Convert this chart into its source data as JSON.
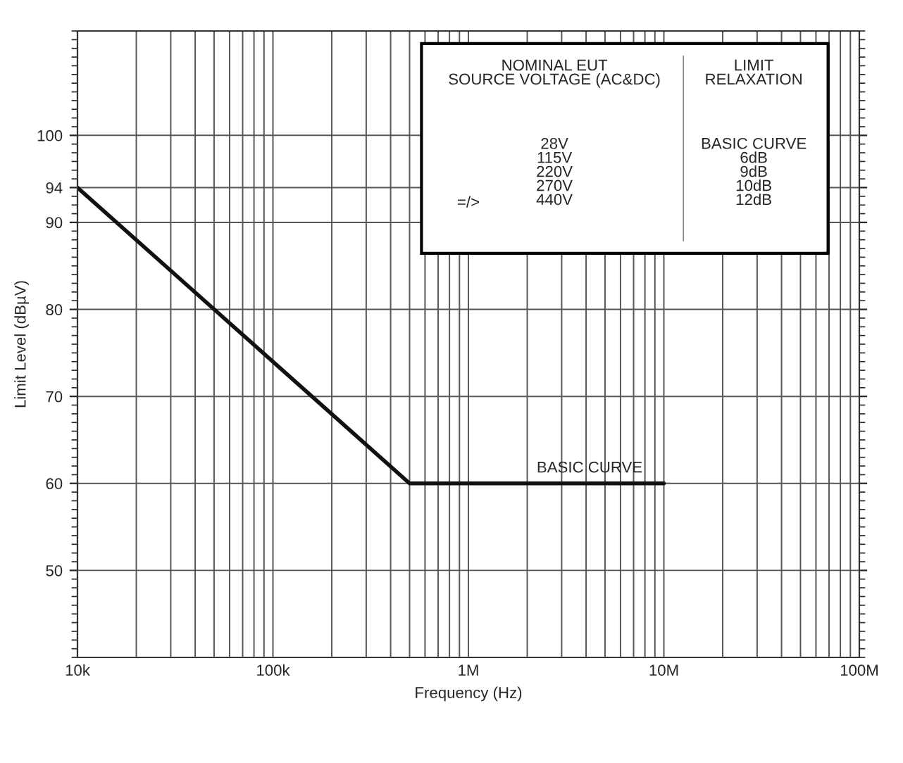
{
  "chart_data": {
    "type": "line",
    "xlabel": "Frequency (Hz)",
    "ylabel": "Limit Level (dBµV)",
    "log": "x",
    "xlim": [
      10000,
      100000000
    ],
    "ylim": [
      40,
      112
    ],
    "xticks": [
      {
        "value": 10000,
        "label": "10k"
      },
      {
        "value": 100000,
        "label": "100k"
      },
      {
        "value": 1000000,
        "label": "1M"
      },
      {
        "value": 10000000,
        "label": "10M"
      },
      {
        "value": 100000000,
        "label": "100M"
      }
    ],
    "yticks": [
      50,
      60,
      70,
      80,
      90,
      94,
      100
    ],
    "grid": true,
    "marker": "none",
    "line_style": "solid",
    "series": [
      {
        "color": "#111111",
        "x": [
          10000,
          500000,
          10000000
        ],
        "values": [
          94,
          60,
          60
        ]
      }
    ],
    "annotations": [
      "BASIC CURVE",
      "NOMINAL EUT\nSOURCE VOLTAGE (AC&DC)",
      "LIMIT\nRELAXATION",
      "28V\n115V\n220V\n270V\n440V",
      "=/>",
      "BASIC CURVE\n6dB\n9dB\n10dB\n12dB"
    ]
  }
}
